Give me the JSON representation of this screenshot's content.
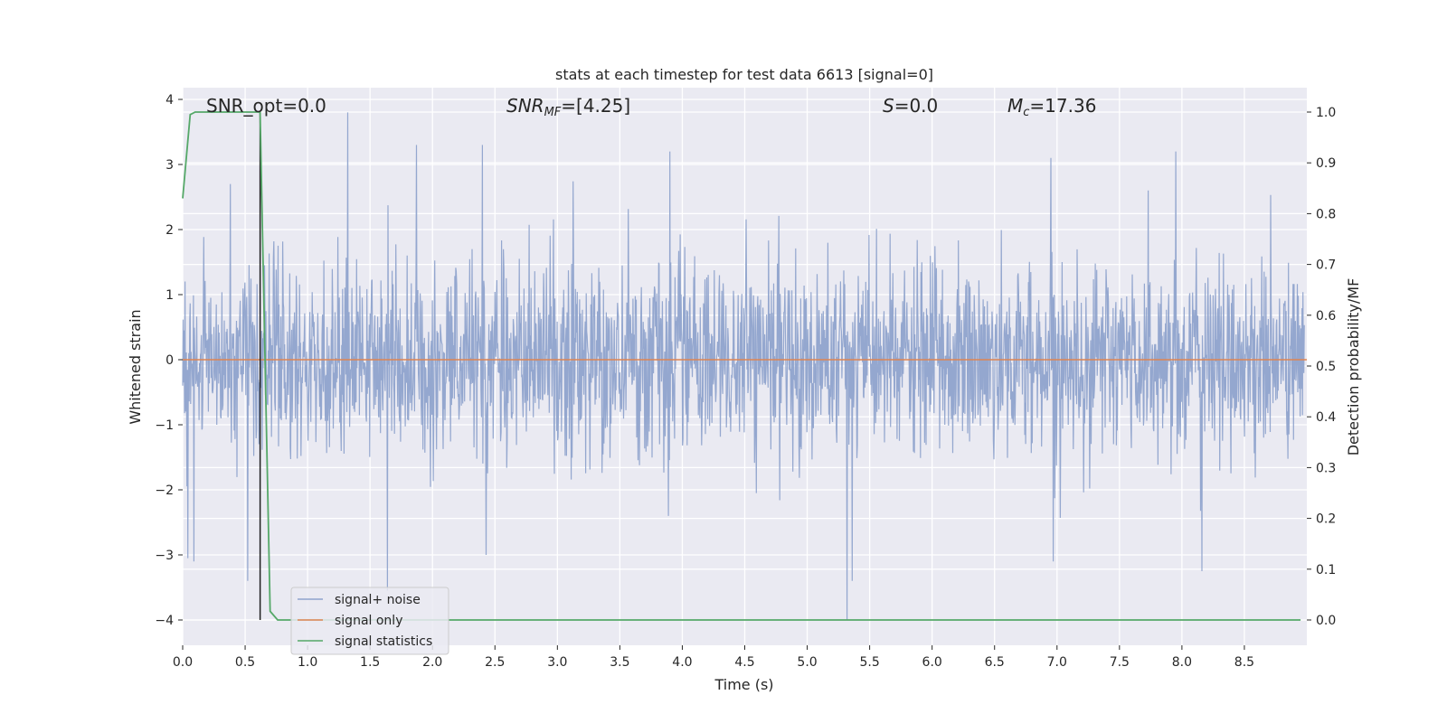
{
  "chart_data": {
    "type": "line",
    "title": "stats at each timestep for test data 6613 [signal=0]",
    "xlabel": "Time (s)",
    "ylabel_left": "Whitened strain",
    "ylabel_right": "Detection probability/MF",
    "xlim": [
      0.0,
      9.0
    ],
    "ylim_left": [
      -4.4,
      4.2
    ],
    "ylim_right": [
      -0.05,
      1.05
    ],
    "xticks": [
      "0.0",
      "0.5",
      "1.0",
      "1.5",
      "2.0",
      "2.5",
      "3.0",
      "3.5",
      "4.0",
      "4.5",
      "5.0",
      "5.5",
      "6.0",
      "6.5",
      "7.0",
      "7.5",
      "8.0",
      "8.5"
    ],
    "yticks_left": [
      "4",
      "3",
      "2",
      "1",
      "0",
      "−1",
      "−2",
      "−3",
      "−4"
    ],
    "yticks_right": [
      "1.0",
      "0.9",
      "0.8",
      "0.7",
      "0.6",
      "0.5",
      "0.4",
      "0.3",
      "0.2",
      "0.1",
      "0.0"
    ],
    "grid": true,
    "legend_position": "lower-left",
    "annotations": {
      "snr_opt": "SNR_opt=0.0",
      "snr_mf_main": "SNR",
      "snr_mf_sub": "MF",
      "snr_mf_value": "=[4.25]",
      "s_main": "S",
      "s_value": "=0.0",
      "mc_main": "M",
      "mc_sub": "c",
      "mc_value": "=17.36"
    },
    "series": [
      {
        "name": "signal+ noise",
        "axis": "left",
        "color": "#8fa3cc",
        "description_type": "noise",
        "std": 0.72,
        "peaks": [
          {
            "x": 0.04,
            "y": -3.05
          },
          {
            "x": 0.09,
            "y": -3.1
          },
          {
            "x": 0.38,
            "y": 2.7
          },
          {
            "x": 0.52,
            "y": -3.4
          },
          {
            "x": 1.32,
            "y": 3.8
          },
          {
            "x": 1.64,
            "y": -3.55
          },
          {
            "x": 1.87,
            "y": 3.3
          },
          {
            "x": 2.4,
            "y": 3.3
          },
          {
            "x": 2.43,
            "y": -3.0
          },
          {
            "x": 3.9,
            "y": 3.2
          },
          {
            "x": 5.32,
            "y": -4.0
          },
          {
            "x": 5.36,
            "y": -3.4
          },
          {
            "x": 6.95,
            "y": 3.1
          },
          {
            "x": 6.97,
            "y": -3.1
          },
          {
            "x": 7.95,
            "y": 3.2
          },
          {
            "x": 8.16,
            "y": -3.25
          },
          {
            "x": 7.73,
            "y": 2.6
          }
        ]
      },
      {
        "name": "signal only",
        "axis": "left",
        "color": "#dd8452",
        "x": [
          0.0,
          9.0
        ],
        "y": [
          0.0,
          0.0
        ]
      },
      {
        "name": "signal statistics",
        "axis": "right",
        "color": "#55a868",
        "x": [
          0.0,
          0.06,
          0.1,
          0.15,
          0.2,
          0.3,
          0.4,
          0.5,
          0.6,
          0.62,
          0.66,
          0.7,
          0.76,
          1.0,
          2.0,
          4.0,
          6.0,
          8.0,
          8.95
        ],
        "y": [
          0.83,
          0.995,
          1.0,
          1.0,
          1.0,
          1.0,
          1.0,
          1.0,
          1.0,
          1.0,
          0.5,
          0.017,
          0.0,
          0.0,
          0.0,
          0.0,
          0.0,
          0.0,
          0.0
        ]
      }
    ],
    "marker_line": {
      "x": 0.62,
      "y_from": 1.0,
      "y_to": 0.0,
      "color": "#1f1f1f"
    }
  }
}
